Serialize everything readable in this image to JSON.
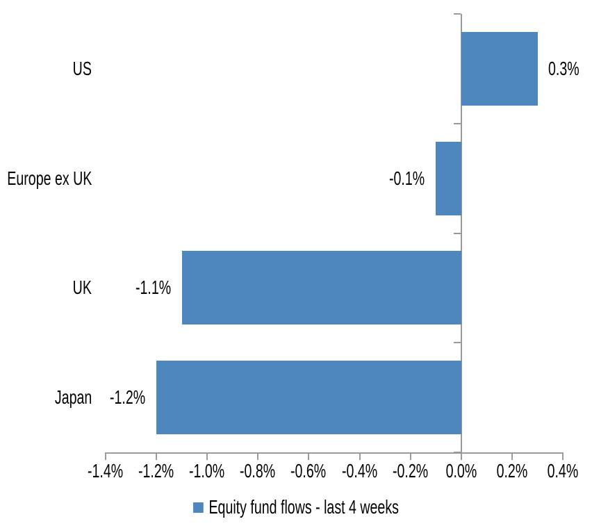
{
  "chart_data": {
    "type": "bar",
    "orientation": "horizontal",
    "categories": [
      "US",
      "Europe ex UK",
      "UK",
      "Japan"
    ],
    "series": [
      {
        "name": "Equity fund flows - last 4 weeks",
        "values": [
          0.3,
          -0.1,
          -1.1,
          -1.2
        ],
        "value_labels": [
          "0.3%",
          "-0.1%",
          "-1.1%",
          "-1.2%"
        ],
        "color": "#4E86BE"
      }
    ],
    "x_axis": {
      "min": -1.4,
      "max": 0.4,
      "step": 0.2,
      "unit": "%",
      "tick_labels": [
        "-1.4%",
        "-1.2%",
        "-1.0%",
        "-0.8%",
        "-0.6%",
        "-0.4%",
        "-0.2%",
        "0.0%",
        "0.2%",
        "0.4%"
      ]
    },
    "legend": {
      "position": "bottom",
      "entries": [
        {
          "label": "Equity fund flows - last 4 weeks",
          "color": "#4E86BE"
        }
      ]
    },
    "grid": false,
    "colors": {
      "axis": "#9A9A9A",
      "text": "#000000",
      "background": "#FFFFFF"
    }
  }
}
